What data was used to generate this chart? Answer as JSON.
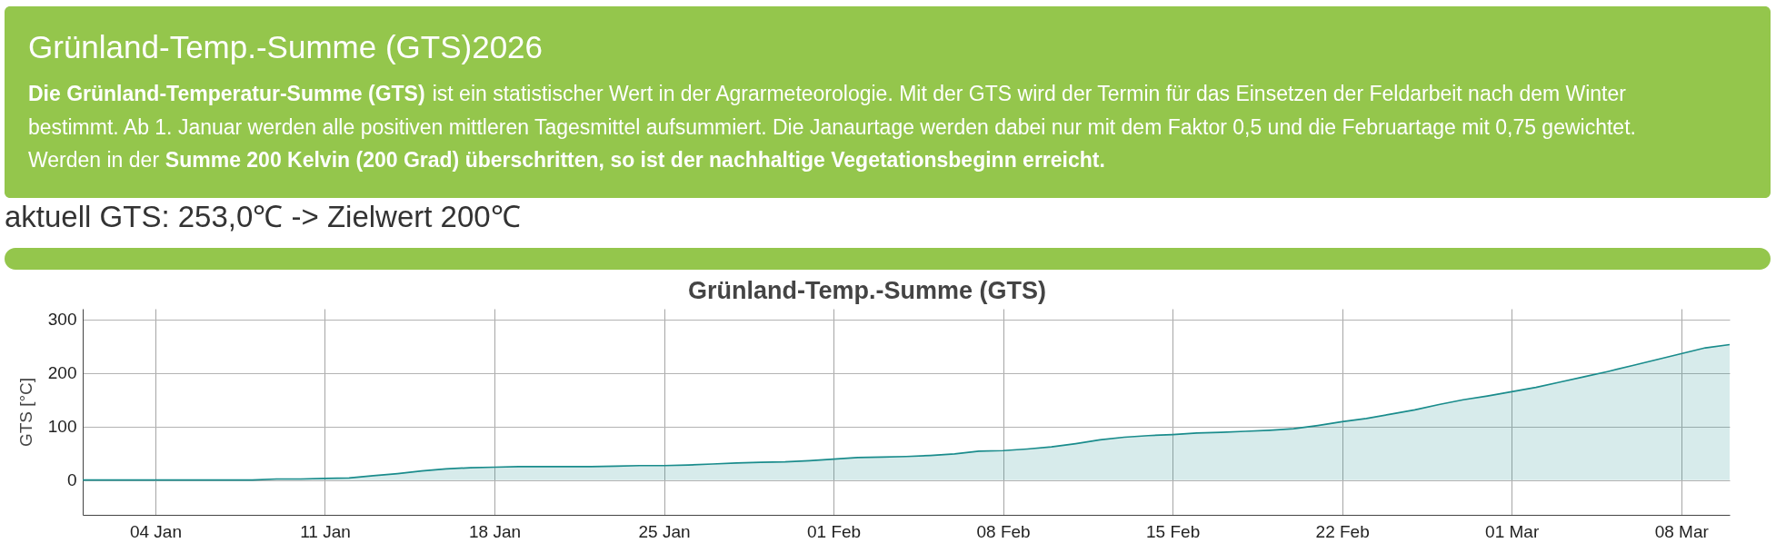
{
  "chart_data": {
    "type": "area",
    "title": "Grünland-Temp.-Summe (GTS)",
    "ylabel": "GTS [°C]",
    "annotations": [
      "Grünland-Temp.-Summe (GTS)2026",
      "Die Grünland-Temperatur-Summe (GTS)",
      "ist ein statistischer Wert in der Agrarmeteorologie. Mit der GTS wird der Termin für das Einsetzen der Feldarbeit nach dem Winter",
      "bestimmt. Ab 1. Januar werden alle positiven mittleren Tagesmittel aufsummiert. Die Janaurtage werden dabei nur mit dem Faktor 0,5 und die Februartage mit 0,75 gewichtet.",
      "Werden in der",
      "Summe 200 Kelvin (200 Grad) überschritten, so ist der nachhaltige Vegetationsbeginn erreicht.",
      "aktuell GTS: 253,0℃ -> Zielwert 200℃"
    ],
    "x": [
      "2026-01-01",
      "2026-01-02",
      "2026-01-03",
      "2026-01-04",
      "2026-01-05",
      "2026-01-06",
      "2026-01-07",
      "2026-01-08",
      "2026-01-09",
      "2026-01-10",
      "2026-01-11",
      "2026-01-12",
      "2026-01-13",
      "2026-01-14",
      "2026-01-15",
      "2026-01-16",
      "2026-01-17",
      "2026-01-18",
      "2026-01-19",
      "2026-01-20",
      "2026-01-21",
      "2026-01-22",
      "2026-01-23",
      "2026-01-24",
      "2026-01-25",
      "2026-01-26",
      "2026-01-27",
      "2026-01-28",
      "2026-01-29",
      "2026-01-30",
      "2026-01-31",
      "2026-02-01",
      "2026-02-02",
      "2026-02-03",
      "2026-02-04",
      "2026-02-05",
      "2026-02-06",
      "2026-02-07",
      "2026-02-08",
      "2026-02-09",
      "2026-02-10",
      "2026-02-11",
      "2026-02-12",
      "2026-02-13",
      "2026-02-14",
      "2026-02-15",
      "2026-02-16",
      "2026-02-17",
      "2026-02-18",
      "2026-02-19",
      "2026-02-20",
      "2026-02-21",
      "2026-02-22",
      "2026-02-23",
      "2026-02-24",
      "2026-02-25",
      "2026-02-26",
      "2026-02-27",
      "2026-02-28",
      "2026-03-01",
      "2026-03-02",
      "2026-03-03",
      "2026-03-04",
      "2026-03-05",
      "2026-03-06",
      "2026-03-07",
      "2026-03-08",
      "2026-03-09",
      "2026-03-10"
    ],
    "series": [
      {
        "color": "#1a8c8c",
        "values": [
          0,
          0,
          0,
          0,
          0,
          0,
          0,
          0,
          2,
          2,
          3,
          4,
          8,
          12,
          17,
          21,
          23,
          24,
          25,
          25,
          25,
          25,
          26,
          27,
          27,
          28,
          30,
          32,
          33,
          34,
          36,
          39,
          42,
          43,
          44,
          46,
          49,
          54,
          55,
          58,
          62,
          68,
          75,
          80,
          83,
          85,
          88,
          89,
          91,
          93,
          96,
          102,
          109,
          115,
          123,
          131,
          141,
          150,
          157,
          165,
          173,
          183,
          193,
          203,
          214,
          225,
          236,
          247,
          253
        ]
      }
    ],
    "xlim": [
      "2026-01-01",
      "2026-03-10"
    ],
    "xticks": [
      {
        "value": "2026-01-04",
        "label": "04 Jan"
      },
      {
        "value": "2026-01-11",
        "label": "11 Jan"
      },
      {
        "value": "2026-01-18",
        "label": "18 Jan"
      },
      {
        "value": "2026-01-25",
        "label": "25 Jan"
      },
      {
        "value": "2026-02-01",
        "label": "01 Feb"
      },
      {
        "value": "2026-02-08",
        "label": "08 Feb"
      },
      {
        "value": "2026-02-15",
        "label": "15 Feb"
      },
      {
        "value": "2026-02-22",
        "label": "22 Feb"
      },
      {
        "value": "2026-03-01",
        "label": "01 Mar"
      },
      {
        "value": "2026-03-08",
        "label": "08 Mar"
      }
    ],
    "ylim": [
      -65,
      320
    ],
    "yticks": [
      0,
      100,
      200,
      300
    ],
    "grid": true
  }
}
